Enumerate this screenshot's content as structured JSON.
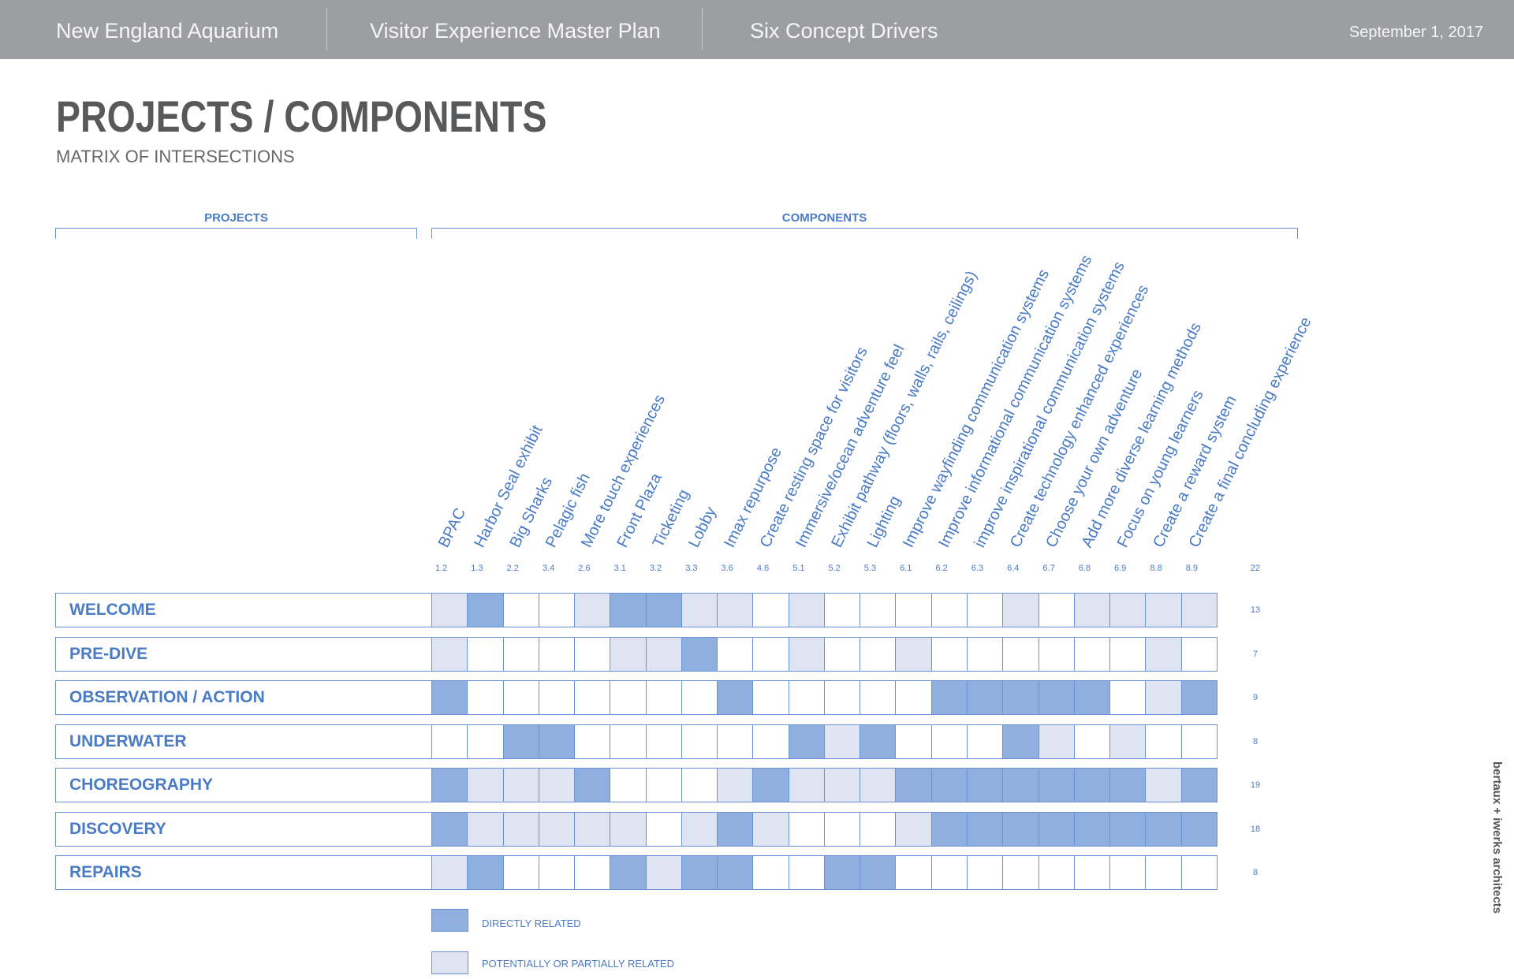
{
  "header": {
    "organization": "New England Aquarium",
    "plan": "Visitor Experience Master Plan",
    "section": "Six Concept Drivers",
    "date": "September 1, 2017"
  },
  "title": "PROJECTS / COMPONENTS",
  "subtitle": "MATRIX OF INTERSECTIONS",
  "group_labels": {
    "projects": "PROJECTS",
    "components": "COMPONENTS"
  },
  "components": [
    {
      "code": "1.2",
      "label": "BPAC"
    },
    {
      "code": "1.3",
      "label": "Harbor Seal exhibit"
    },
    {
      "code": "2.2",
      "label": "Big Sharks"
    },
    {
      "code": "3.4",
      "label": "Pelagic fish"
    },
    {
      "code": "2.6",
      "label": "More touch experiences"
    },
    {
      "code": "3.1",
      "label": "Front Plaza"
    },
    {
      "code": "3.2",
      "label": "Ticketing"
    },
    {
      "code": "3.3",
      "label": "Lobby"
    },
    {
      "code": "3.6",
      "label": "Imax repurpose"
    },
    {
      "code": "4.6",
      "label": "Create resting space for visitors"
    },
    {
      "code": "5.1",
      "label": "Immersive/ocean adventure feel"
    },
    {
      "code": "5.2",
      "label": "Exhibit pathway (floors, walls, rails, ceilings)"
    },
    {
      "code": "5.3",
      "label": "Lighting"
    },
    {
      "code": "6.1",
      "label": "Improve wayfinding communication systems"
    },
    {
      "code": "6.2",
      "label": "Improve informational communication systems"
    },
    {
      "code": "6.3",
      "label": "improve inspirational communication systems"
    },
    {
      "code": "6.4",
      "label": "Create technology enhanced experiences"
    },
    {
      "code": "6.7",
      "label": "Choose your own adventure"
    },
    {
      "code": "6.8",
      "label": "Add more diverse learning methods"
    },
    {
      "code": "6.9",
      "label": "Focus on young learners"
    },
    {
      "code": "8.8",
      "label": "Create a reward system"
    },
    {
      "code": "8.9",
      "label": "Create a final concluding experience"
    }
  ],
  "components_total": "22",
  "projects": [
    {
      "name": "WELCOME",
      "count": "13",
      "cells": [
        1,
        2,
        0,
        0,
        1,
        2,
        2,
        1,
        1,
        0,
        1,
        0,
        0,
        0,
        0,
        0,
        1,
        0,
        1,
        1,
        1,
        1
      ]
    },
    {
      "name": "PRE-DIVE",
      "count": "7",
      "cells": [
        1,
        0,
        0,
        0,
        0,
        1,
        1,
        2,
        0,
        0,
        1,
        0,
        0,
        1,
        0,
        0,
        0,
        0,
        0,
        0,
        1,
        0
      ]
    },
    {
      "name": "OBSERVATION / ACTION",
      "count": "9",
      "cells": [
        2,
        0,
        0,
        0,
        0,
        0,
        0,
        0,
        2,
        0,
        0,
        0,
        0,
        0,
        2,
        2,
        2,
        2,
        2,
        0,
        1,
        2
      ]
    },
    {
      "name": "UNDERWATER",
      "count": "8",
      "cells": [
        0,
        0,
        2,
        2,
        0,
        0,
        0,
        0,
        0,
        0,
        2,
        1,
        2,
        0,
        0,
        0,
        2,
        1,
        0,
        1,
        0,
        0
      ]
    },
    {
      "name": "CHOREOGRAPHY",
      "count": "19",
      "cells": [
        2,
        1,
        1,
        1,
        2,
        0,
        0,
        0,
        1,
        2,
        1,
        1,
        1,
        2,
        2,
        2,
        2,
        2,
        2,
        2,
        1,
        2
      ]
    },
    {
      "name": "DISCOVERY",
      "count": "18",
      "cells": [
        2,
        1,
        1,
        1,
        1,
        1,
        0,
        1,
        2,
        1,
        0,
        0,
        0,
        1,
        2,
        2,
        2,
        2,
        2,
        2,
        2,
        2
      ]
    },
    {
      "name": "REPAIRS",
      "count": "8",
      "cells": [
        1,
        2,
        0,
        0,
        0,
        2,
        1,
        2,
        2,
        0,
        0,
        2,
        2,
        0,
        0,
        0,
        0,
        0,
        0,
        0,
        0,
        0
      ]
    }
  ],
  "legend": [
    {
      "level": 2,
      "label": "DIRECTLY RELATED"
    },
    {
      "level": 1,
      "label": "POTENTIALLY OR PARTIALLY RELATED"
    }
  ],
  "credit": "bertaux + iwerks architects",
  "colors": {
    "directly_related": "#8fafe0",
    "partially_related": "#dee4f2",
    "not_related": "#ffffff",
    "grid_line": "#6b93d3",
    "label_blue": "#4a7bc6",
    "header_bar": "#9c9ea2",
    "title_gray": "#58595b"
  }
}
